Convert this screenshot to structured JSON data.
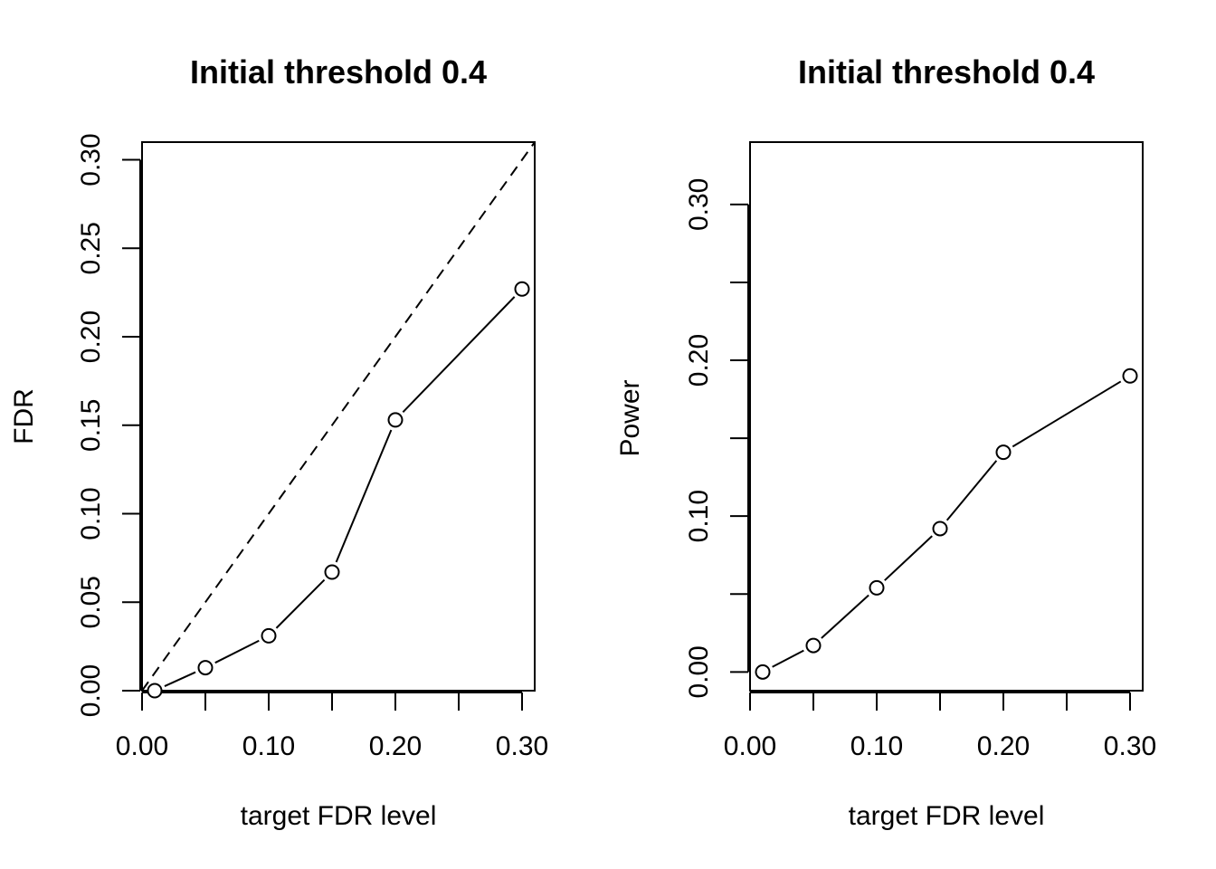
{
  "chart_data": [
    {
      "type": "line",
      "title": "Initial threshold 0.4",
      "xlabel": "target FDR level",
      "ylabel": "FDR",
      "xlim": [
        0.0,
        0.31
      ],
      "ylim": [
        0.0,
        0.31
      ],
      "x_ticks": [
        "0.00",
        "0.10",
        "0.20",
        "0.30"
      ],
      "x_minor_ticks": [
        0.05,
        0.15,
        0.25
      ],
      "y_ticks": [
        "0.00",
        "0.05",
        "0.10",
        "0.15",
        "0.20",
        "0.25",
        "0.30"
      ],
      "reference_line": {
        "style": "dashed",
        "slope": 1,
        "intercept": 0
      },
      "series": [
        {
          "x": [
            0.01,
            0.05,
            0.1,
            0.15,
            0.2,
            0.3
          ],
          "y": [
            0.0,
            0.013,
            0.031,
            0.067,
            0.153,
            0.227
          ],
          "marker": "open-circle"
        }
      ],
      "grid": false,
      "legend": "none"
    },
    {
      "type": "line",
      "title": "Initial threshold 0.4",
      "xlabel": "target FDR level",
      "ylabel": "Power",
      "xlim": [
        0.0,
        0.31
      ],
      "ylim": [
        -0.012,
        0.34
      ],
      "x_ticks": [
        "0.00",
        "0.10",
        "0.20",
        "0.30"
      ],
      "x_minor_ticks": [
        0.05,
        0.15,
        0.25
      ],
      "y_ticks": [
        "0.00",
        "0.10",
        "0.20",
        "0.30"
      ],
      "y_minor_ticks": [
        0.05,
        0.15,
        0.25
      ],
      "series": [
        {
          "x": [
            0.01,
            0.05,
            0.1,
            0.15,
            0.2,
            0.3
          ],
          "y": [
            0.0,
            0.017,
            0.054,
            0.092,
            0.141,
            0.19
          ],
          "marker": "open-circle"
        }
      ],
      "grid": false,
      "legend": "none"
    }
  ]
}
